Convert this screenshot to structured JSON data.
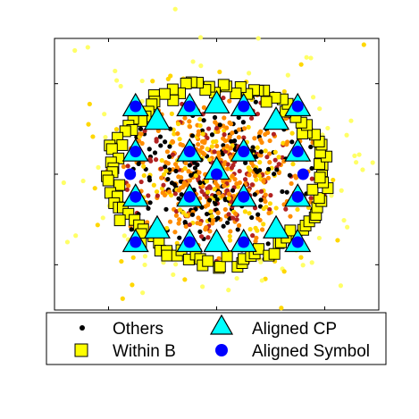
{
  "chart_data": {
    "type": "scatter",
    "title": "",
    "xlabel": "",
    "ylabel": "",
    "xlim": [
      -1.5,
      1.5
    ],
    "ylim": [
      -1.5,
      1.5
    ],
    "x_ticks": [
      -1,
      0,
      1
    ],
    "y_ticks": [
      -1,
      0,
      1
    ],
    "tick_labels_shown": false,
    "grid": false,
    "legend_position": "below-plot",
    "series": [
      {
        "name": "Others",
        "marker": "dot",
        "color": "#000000",
        "cloud_colors": [
          "#000000",
          "#ff8c00",
          "#ffd700",
          "#ffff66",
          "#b22222"
        ],
        "distribution": "dense cloud centred at (0, 0), radius about 1.0"
      },
      {
        "name": "Within B",
        "marker": "square",
        "color": "#ffff00",
        "edge_color": "#000000",
        "distribution": "ring of roughly 110 points at radius about 0.9-1.05"
      },
      {
        "name": "Aligned CP",
        "marker": "triangle",
        "color": "#00ffff",
        "edge_color": "#000000",
        "points": [
          [
            -0.75,
            0.75
          ],
          [
            -0.25,
            0.75
          ],
          [
            0.25,
            0.75
          ],
          [
            0.75,
            0.75
          ],
          [
            -0.75,
            0.25
          ],
          [
            -0.25,
            0.25
          ],
          [
            0.25,
            0.25
          ],
          [
            0.75,
            0.25
          ],
          [
            -0.75,
            -0.25
          ],
          [
            -0.25,
            -0.25
          ],
          [
            0.25,
            -0.25
          ],
          [
            0.75,
            -0.25
          ],
          [
            -0.75,
            -0.75
          ],
          [
            -0.25,
            -0.75
          ],
          [
            0.25,
            -0.75
          ],
          [
            0.75,
            -0.75
          ],
          [
            0.0,
            0.78
          ],
          [
            0.0,
            0.05
          ],
          [
            0.0,
            -0.75
          ],
          [
            -0.55,
            0.6
          ],
          [
            0.55,
            0.6
          ],
          [
            -0.55,
            -0.6
          ],
          [
            0.55,
            -0.6
          ]
        ]
      },
      {
        "name": "Aligned Symbol",
        "marker": "circle",
        "color": "#0000ff",
        "points": [
          [
            -0.75,
            0.75
          ],
          [
            -0.25,
            0.75
          ],
          [
            0.25,
            0.75
          ],
          [
            0.75,
            0.75
          ],
          [
            -0.75,
            0.25
          ],
          [
            -0.25,
            0.25
          ],
          [
            0.25,
            0.25
          ],
          [
            0.75,
            0.25
          ],
          [
            -0.75,
            -0.25
          ],
          [
            -0.25,
            -0.25
          ],
          [
            0.25,
            -0.25
          ],
          [
            0.75,
            -0.25
          ],
          [
            -0.75,
            -0.75
          ],
          [
            -0.25,
            -0.75
          ],
          [
            0.25,
            -0.75
          ],
          [
            0.75,
            -0.75
          ],
          [
            0.0,
            0.0
          ],
          [
            -0.8,
            0.0
          ],
          [
            0.8,
            0.0
          ]
        ]
      }
    ]
  }
}
